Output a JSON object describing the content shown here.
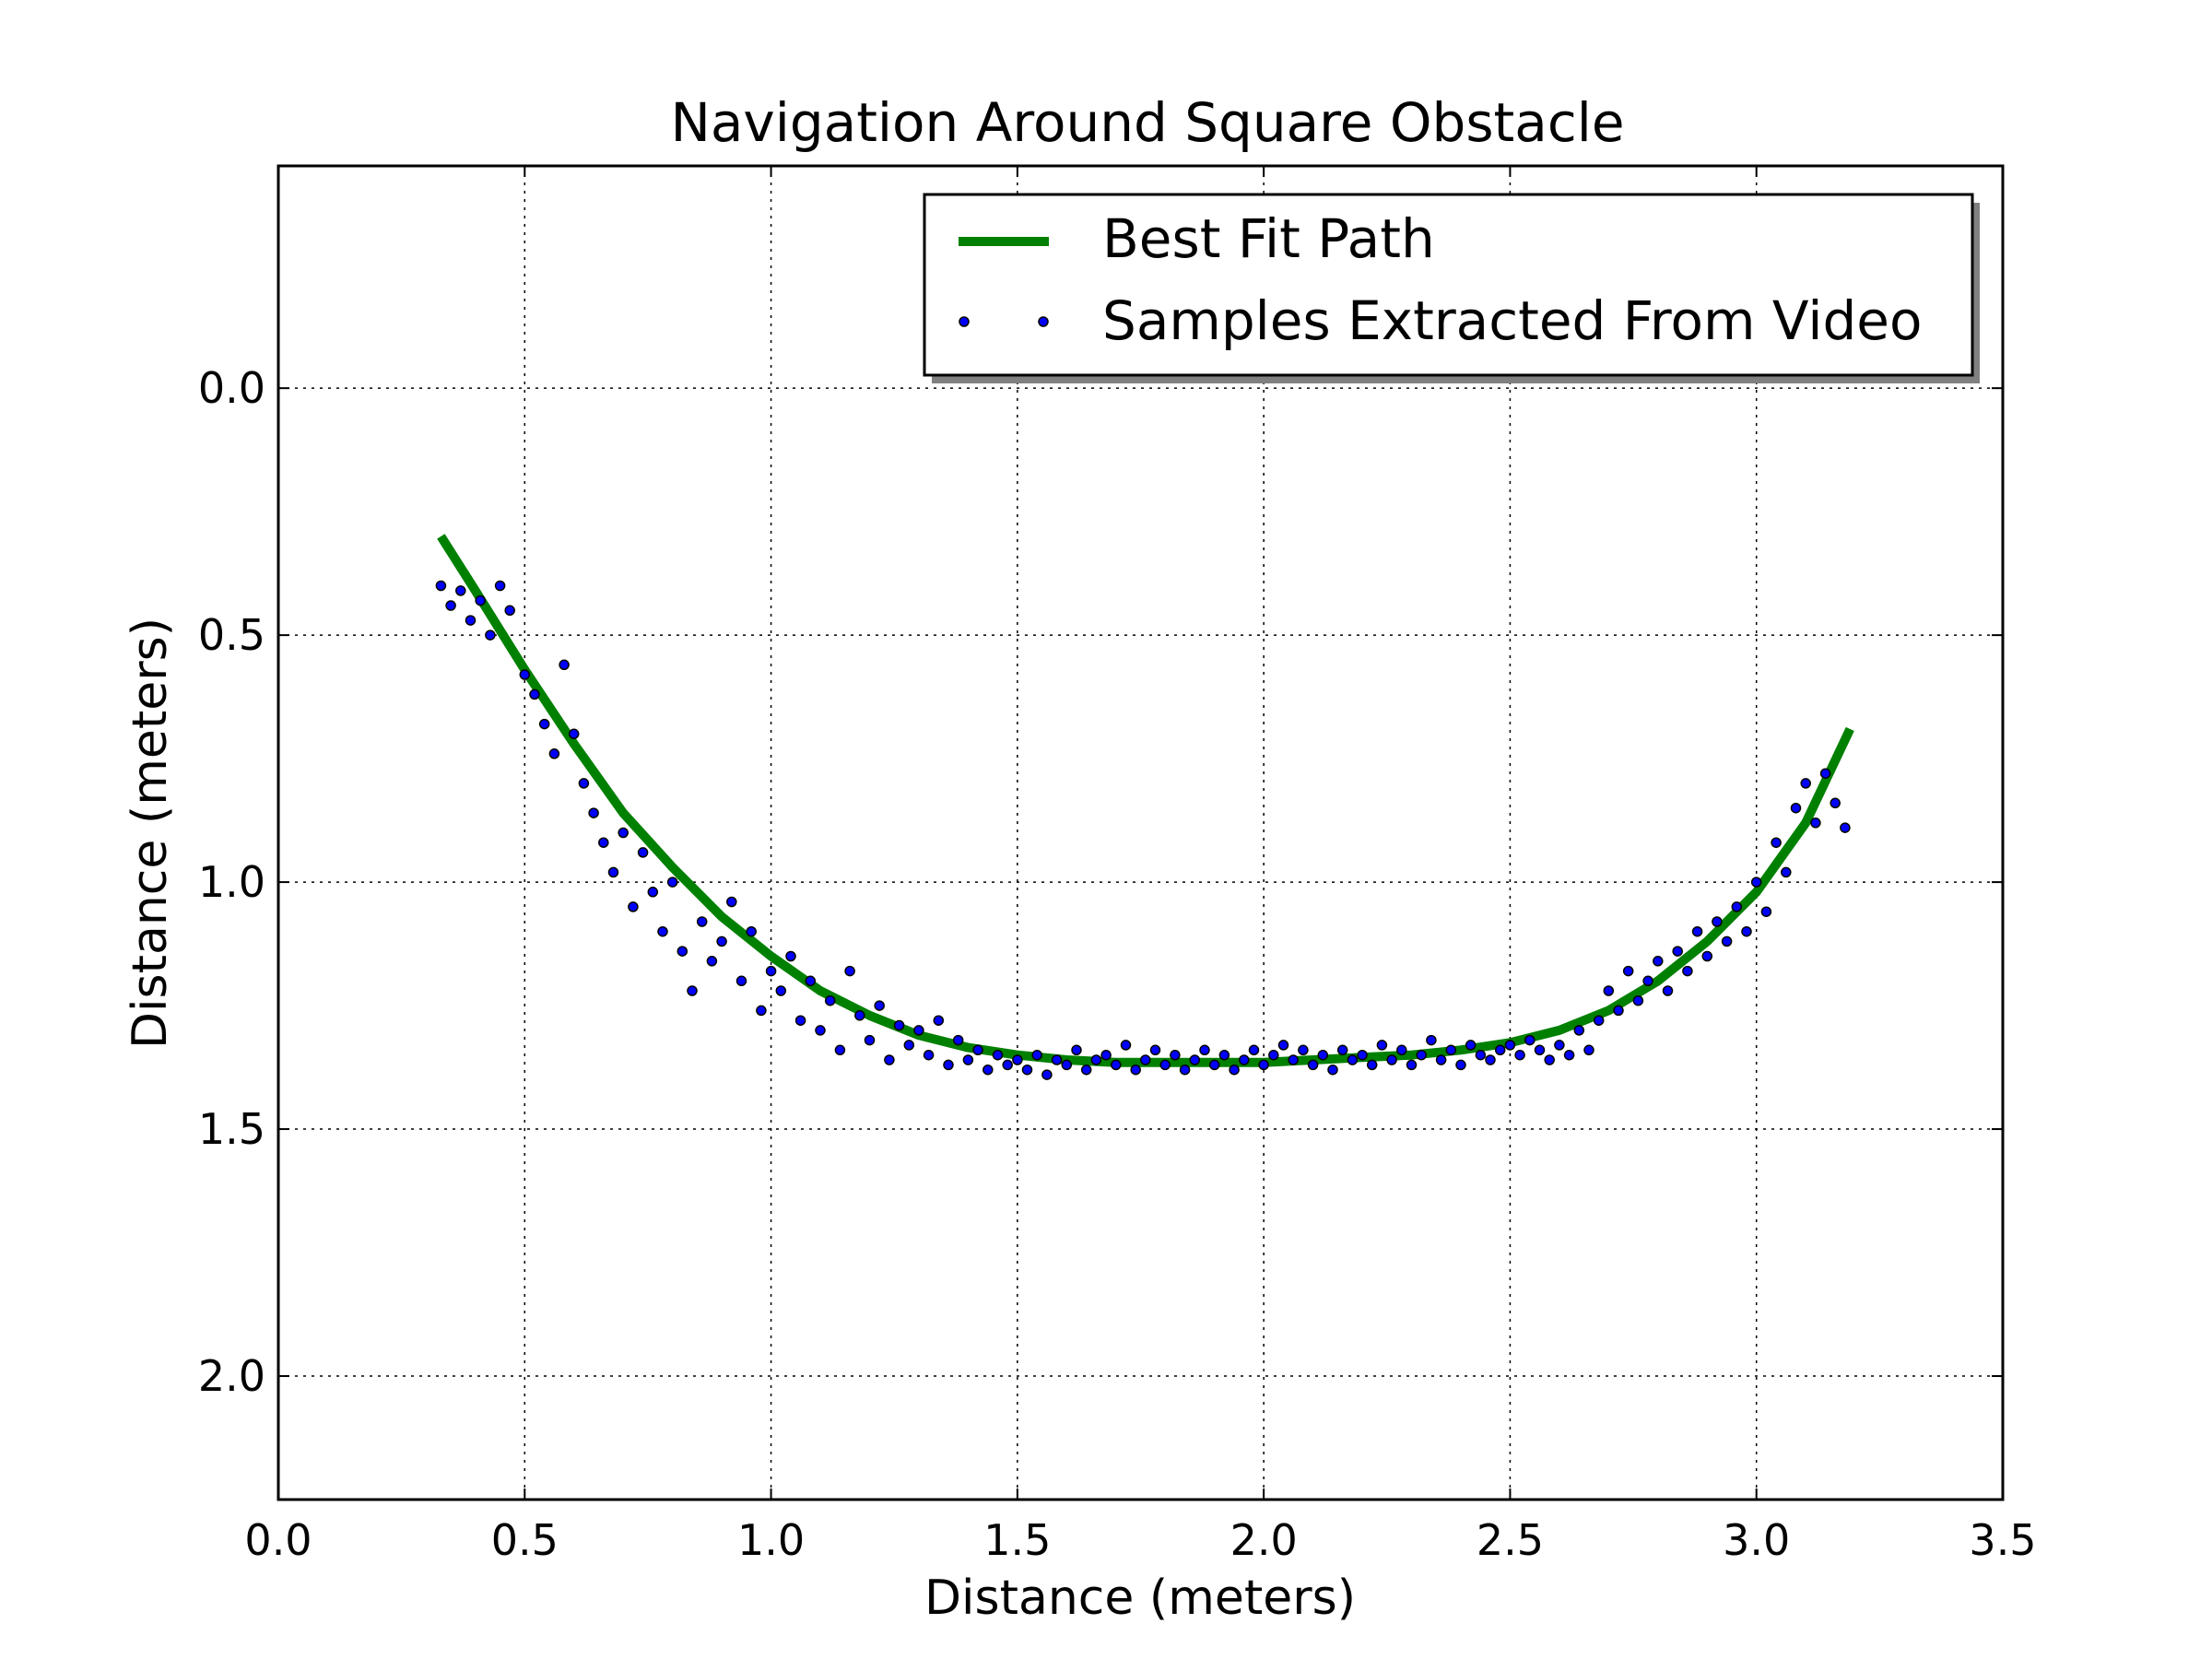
{
  "chart_data": {
    "type": "scatter",
    "title": "Navigation Around Square Obstacle",
    "xlabel": "Distance (meters)",
    "ylabel": "Distance (meters)",
    "xlim": [
      0.0,
      3.5
    ],
    "ylim": [
      -0.45,
      2.25
    ],
    "y_axis_inverted": true,
    "grid": true,
    "legend_position": "upper-right",
    "xticks": [
      "0.0",
      "0.5",
      "1.0",
      "1.5",
      "2.0",
      "2.5",
      "3.0",
      "3.5"
    ],
    "yticks": [
      "0.0",
      "0.5",
      "1.0",
      "1.5",
      "2.0"
    ],
    "series": [
      {
        "name": "Best Fit Path",
        "kind": "line",
        "color": "#008000",
        "x": [
          0.33,
          0.4,
          0.5,
          0.6,
          0.7,
          0.8,
          0.9,
          1.0,
          1.1,
          1.2,
          1.3,
          1.4,
          1.5,
          1.6,
          1.7,
          1.8,
          1.9,
          2.0,
          2.1,
          2.2,
          2.3,
          2.4,
          2.5,
          2.6,
          2.7,
          2.8,
          2.9,
          3.0,
          3.1,
          3.19
        ],
        "y": [
          0.3,
          0.41,
          0.57,
          0.72,
          0.86,
          0.97,
          1.07,
          1.15,
          1.22,
          1.27,
          1.31,
          1.335,
          1.35,
          1.36,
          1.365,
          1.365,
          1.365,
          1.365,
          1.36,
          1.355,
          1.35,
          1.34,
          1.325,
          1.3,
          1.26,
          1.2,
          1.12,
          1.02,
          0.88,
          0.69
        ]
      },
      {
        "name": "Samples Extracted From Video",
        "kind": "scatter",
        "color": "#0000ff",
        "x": [
          0.33,
          0.35,
          0.37,
          0.39,
          0.41,
          0.43,
          0.45,
          0.47,
          0.5,
          0.52,
          0.54,
          0.56,
          0.58,
          0.6,
          0.62,
          0.64,
          0.66,
          0.68,
          0.7,
          0.72,
          0.74,
          0.76,
          0.78,
          0.8,
          0.82,
          0.84,
          0.86,
          0.88,
          0.9,
          0.92,
          0.94,
          0.96,
          0.98,
          1.0,
          1.02,
          1.04,
          1.06,
          1.08,
          1.1,
          1.12,
          1.14,
          1.16,
          1.18,
          1.2,
          1.22,
          1.24,
          1.26,
          1.28,
          1.3,
          1.32,
          1.34,
          1.36,
          1.38,
          1.4,
          1.42,
          1.44,
          1.46,
          1.48,
          1.5,
          1.52,
          1.54,
          1.56,
          1.58,
          1.6,
          1.62,
          1.64,
          1.66,
          1.68,
          1.7,
          1.72,
          1.74,
          1.76,
          1.78,
          1.8,
          1.82,
          1.84,
          1.86,
          1.88,
          1.9,
          1.92,
          1.94,
          1.96,
          1.98,
          2.0,
          2.02,
          2.04,
          2.06,
          2.08,
          2.1,
          2.12,
          2.14,
          2.16,
          2.18,
          2.2,
          2.22,
          2.24,
          2.26,
          2.28,
          2.3,
          2.32,
          2.34,
          2.36,
          2.38,
          2.4,
          2.42,
          2.44,
          2.46,
          2.48,
          2.5,
          2.52,
          2.54,
          2.56,
          2.58,
          2.6,
          2.62,
          2.64,
          2.66,
          2.68,
          2.7,
          2.72,
          2.74,
          2.76,
          2.78,
          2.8,
          2.82,
          2.84,
          2.86,
          2.88,
          2.9,
          2.92,
          2.94,
          2.96,
          2.98,
          3.0,
          3.02,
          3.04,
          3.06,
          3.08,
          3.1,
          3.12,
          3.14,
          3.16,
          3.18
        ],
        "y": [
          0.4,
          0.44,
          0.41,
          0.47,
          0.43,
          0.5,
          0.4,
          0.45,
          0.58,
          0.62,
          0.68,
          0.74,
          0.56,
          0.7,
          0.8,
          0.86,
          0.92,
          0.98,
          0.9,
          1.05,
          0.94,
          1.02,
          1.1,
          1.0,
          1.14,
          1.22,
          1.08,
          1.16,
          1.12,
          1.04,
          1.2,
          1.1,
          1.26,
          1.18,
          1.22,
          1.15,
          1.28,
          1.2,
          1.3,
          1.24,
          1.34,
          1.18,
          1.27,
          1.32,
          1.25,
          1.36,
          1.29,
          1.33,
          1.3,
          1.35,
          1.28,
          1.37,
          1.32,
          1.36,
          1.34,
          1.38,
          1.35,
          1.37,
          1.36,
          1.38,
          1.35,
          1.39,
          1.36,
          1.37,
          1.34,
          1.38,
          1.36,
          1.35,
          1.37,
          1.33,
          1.38,
          1.36,
          1.34,
          1.37,
          1.35,
          1.38,
          1.36,
          1.34,
          1.37,
          1.35,
          1.38,
          1.36,
          1.34,
          1.37,
          1.35,
          1.33,
          1.36,
          1.34,
          1.37,
          1.35,
          1.38,
          1.34,
          1.36,
          1.35,
          1.37,
          1.33,
          1.36,
          1.34,
          1.37,
          1.35,
          1.32,
          1.36,
          1.34,
          1.37,
          1.33,
          1.35,
          1.36,
          1.34,
          1.33,
          1.35,
          1.32,
          1.34,
          1.36,
          1.33,
          1.35,
          1.3,
          1.34,
          1.28,
          1.22,
          1.26,
          1.18,
          1.24,
          1.2,
          1.16,
          1.22,
          1.14,
          1.18,
          1.1,
          1.15,
          1.08,
          1.12,
          1.05,
          1.1,
          1.0,
          1.06,
          0.92,
          0.98,
          0.85,
          0.8,
          0.88,
          0.78,
          0.84,
          0.89
        ]
      }
    ]
  }
}
